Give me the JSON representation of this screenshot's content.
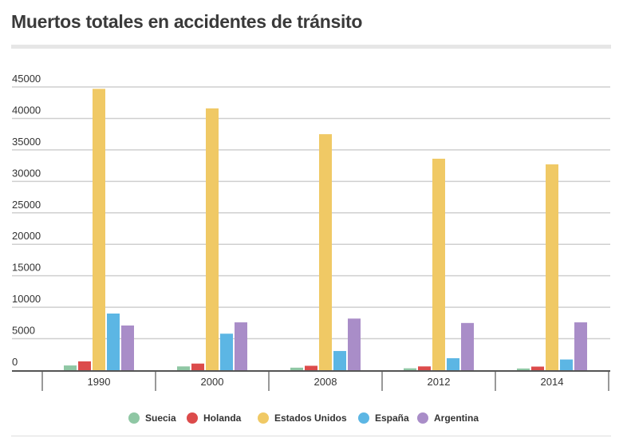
{
  "chart_data": {
    "type": "bar",
    "title": "Muertos totales en accidentes de tránsito",
    "xlabel": "",
    "ylabel": "",
    "ylim": [
      0,
      45000
    ],
    "yticks": [
      "0",
      "5000",
      "10000",
      "15000",
      "20000",
      "25000",
      "30000",
      "35000",
      "40000",
      "45000"
    ],
    "categories": [
      "1990",
      "2000",
      "2008",
      "2012",
      "2014"
    ],
    "grid": true,
    "legend_position": "bottom",
    "series": [
      {
        "name": "Suecia",
        "color": "#8fc7a4",
        "values": [
          750,
          600,
          400,
          300,
          270
        ]
      },
      {
        "name": "Holanda",
        "color": "#dc4b4b",
        "values": [
          1400,
          1050,
          700,
          600,
          570
        ]
      },
      {
        "name": "Estados Unidos",
        "color": "#f0c965",
        "values": [
          44700,
          41600,
          37500,
          33600,
          32700
        ]
      },
      {
        "name": "España",
        "color": "#5cb6e4",
        "values": [
          9000,
          5800,
          3050,
          1900,
          1700
        ]
      },
      {
        "name": "Argentina",
        "color": "#a98dc8",
        "values": [
          7100,
          7600,
          8200,
          7500,
          7600
        ]
      }
    ]
  }
}
